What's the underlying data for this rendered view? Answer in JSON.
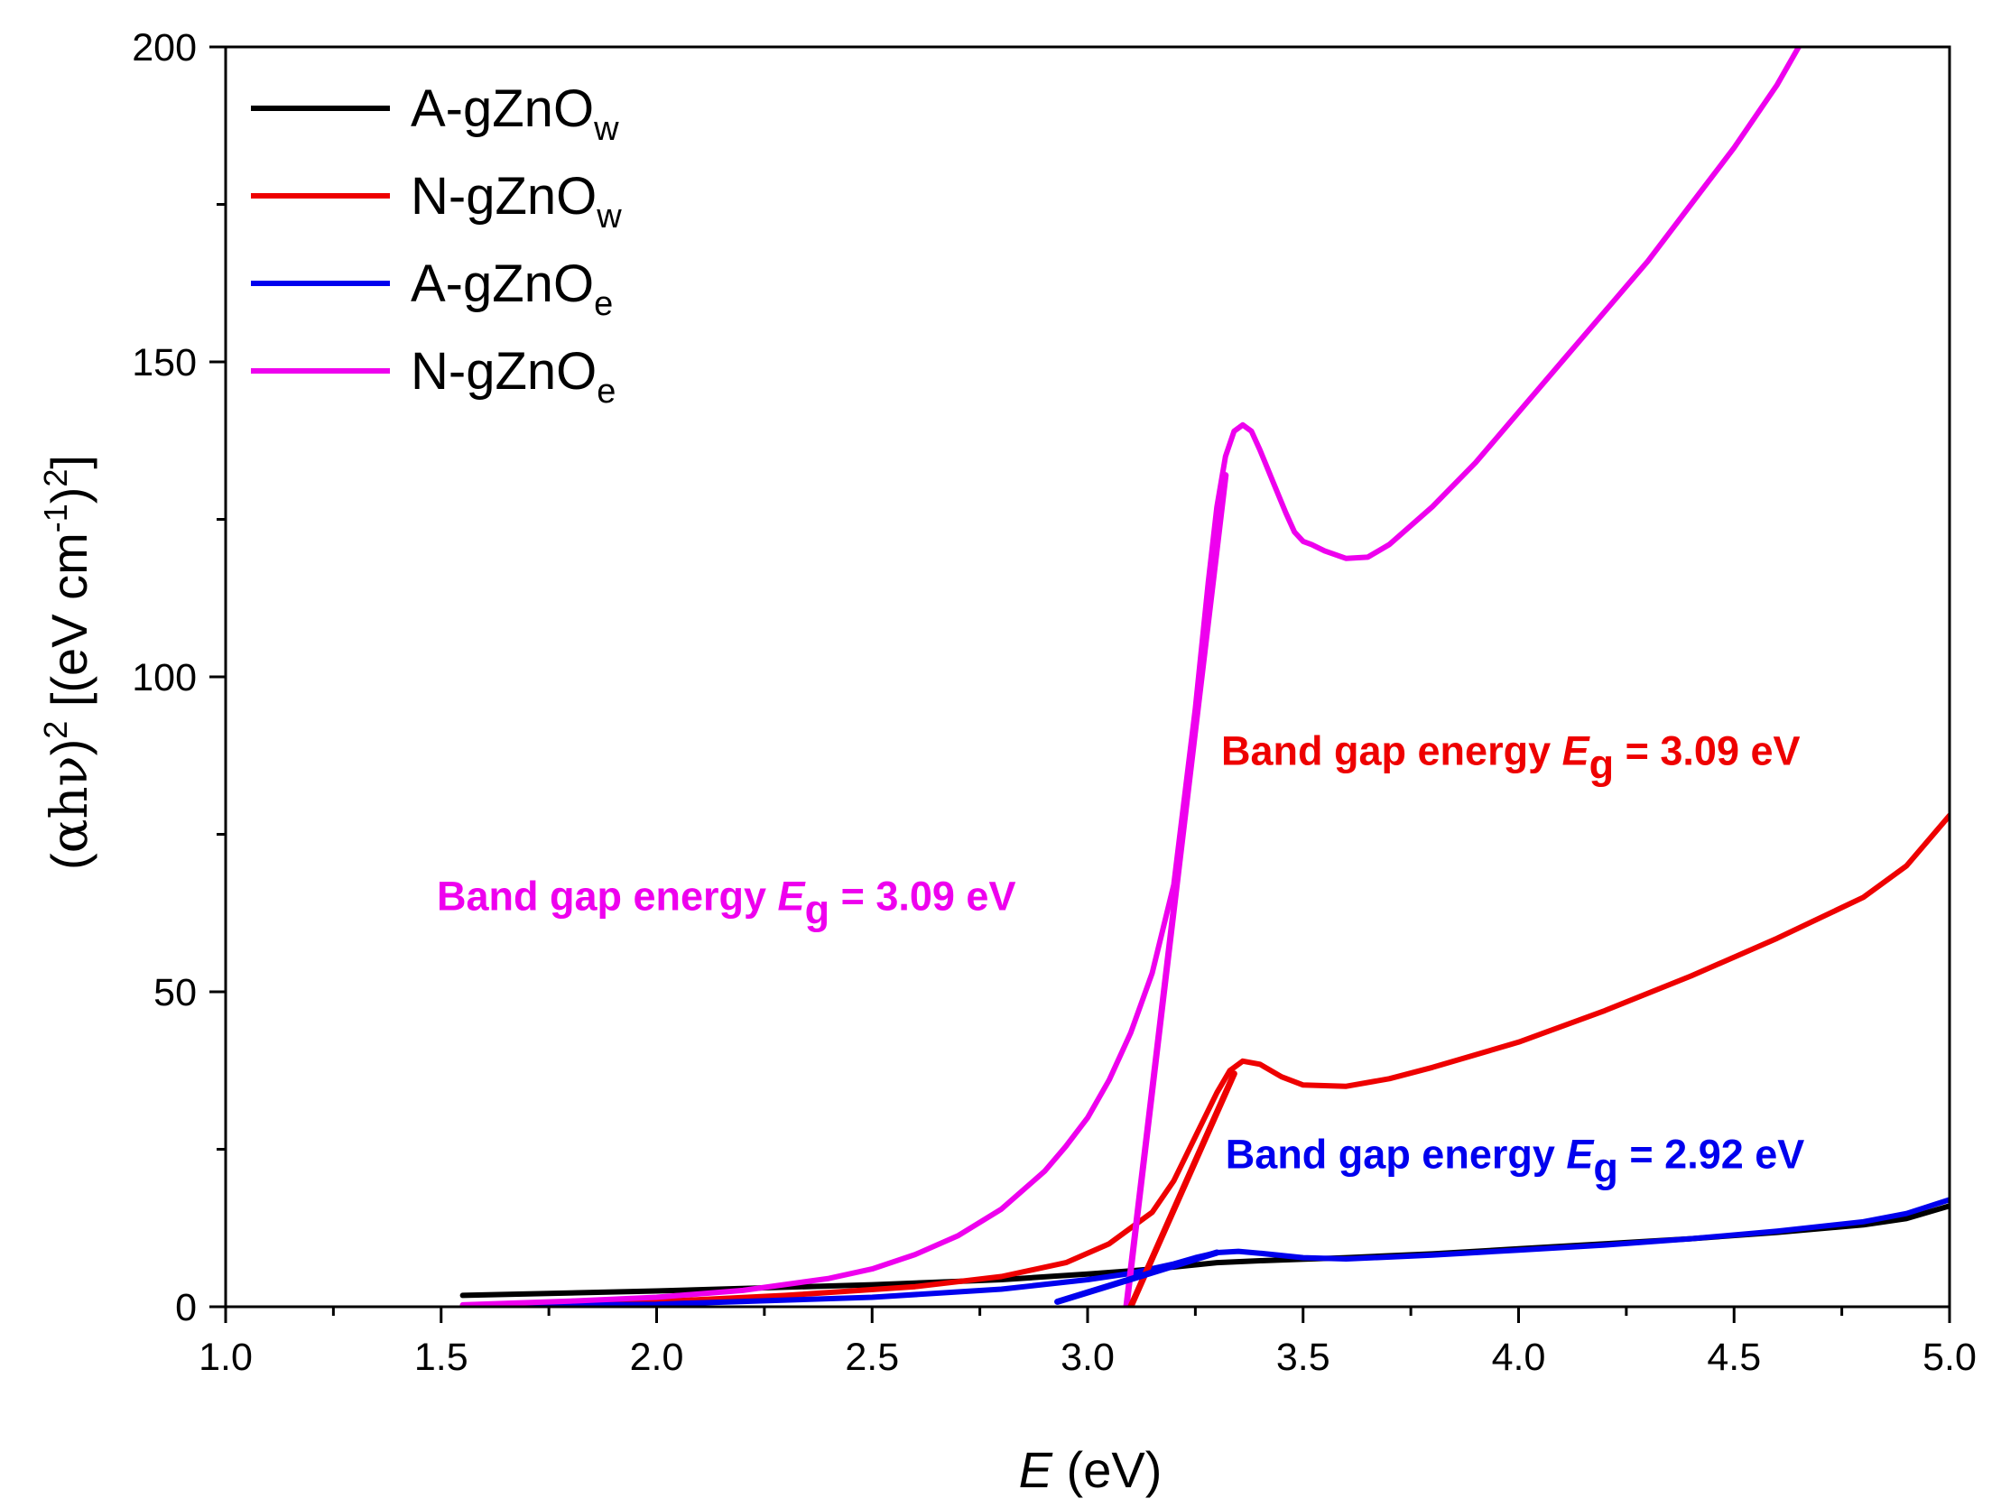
{
  "chart_data": {
    "type": "line",
    "title": "",
    "xlabel": {
      "italic": "E",
      "rest": " (eV)"
    },
    "ylabel": {
      "pre": "(",
      "greek": "αhν",
      "mid": ")",
      "sup1": "2",
      "rest": " [(eV cm",
      "sup2": "-1",
      "rest2": ")",
      "sup3": "2",
      "end": "]"
    },
    "xlim": [
      1.0,
      5.0
    ],
    "ylim": [
      0,
      200
    ],
    "x_ticks": [
      "1.0",
      "1.5",
      "2.0",
      "2.5",
      "3.0",
      "3.5",
      "4.0",
      "4.5",
      "5.0"
    ],
    "y_ticks": [
      "0",
      "50",
      "100",
      "150",
      "200"
    ],
    "x_tick_values": [
      1.0,
      1.5,
      2.0,
      2.5,
      3.0,
      3.5,
      4.0,
      4.5,
      5.0
    ],
    "y_tick_values": [
      0,
      50,
      100,
      150,
      200
    ],
    "legend_position": "top-left",
    "series": [
      {
        "name": "A-gZnOw",
        "base": "A-gZnO",
        "sub": "w",
        "color": "#000000",
        "x": [
          1.55,
          2.0,
          2.5,
          2.8,
          3.0,
          3.1,
          3.2,
          3.3,
          3.4,
          3.6,
          3.8,
          4.0,
          4.2,
          4.4,
          4.6,
          4.8,
          4.9,
          5.0
        ],
        "y": [
          1.8,
          2.5,
          3.5,
          4.3,
          5.2,
          5.7,
          6.3,
          7.0,
          7.3,
          7.8,
          8.4,
          9.2,
          10.0,
          10.8,
          11.8,
          13.0,
          14.0,
          16.0
        ]
      },
      {
        "name": "N-gZnOw",
        "base": "N-gZnO",
        "sub": "w",
        "color": "#ee0000",
        "x": [
          1.55,
          2.0,
          2.3,
          2.6,
          2.8,
          2.95,
          3.05,
          3.15,
          3.2,
          3.25,
          3.3,
          3.33,
          3.36,
          3.4,
          3.45,
          3.5,
          3.6,
          3.7,
          3.8,
          4.0,
          4.2,
          4.4,
          4.6,
          4.8,
          4.9,
          5.0
        ],
        "y": [
          0.2,
          0.8,
          1.8,
          3.2,
          4.8,
          7.0,
          10.0,
          15.0,
          20.0,
          27.0,
          34.0,
          37.5,
          39.0,
          38.5,
          36.5,
          35.2,
          35.0,
          36.2,
          38.0,
          42.0,
          47.0,
          52.5,
          58.5,
          65.0,
          70.0,
          78.0
        ]
      },
      {
        "name": "A-gZnOe",
        "base": "A-gZnO",
        "sub": "e",
        "color": "#0000ee",
        "x": [
          1.55,
          2.0,
          2.5,
          2.8,
          3.0,
          3.1,
          3.2,
          3.25,
          3.3,
          3.35,
          3.4,
          3.5,
          3.6,
          3.8,
          4.0,
          4.2,
          4.4,
          4.6,
          4.8,
          4.9,
          5.0
        ],
        "y": [
          0.1,
          0.4,
          1.5,
          2.8,
          4.3,
          5.3,
          6.8,
          7.8,
          8.6,
          8.8,
          8.5,
          7.8,
          7.6,
          8.2,
          9.0,
          9.8,
          10.8,
          12.0,
          13.5,
          14.8,
          17.0
        ]
      },
      {
        "name": "N-gZnOe",
        "base": "N-gZnO",
        "sub": "e",
        "color": "#ee00ee",
        "x": [
          1.55,
          1.8,
          2.0,
          2.2,
          2.4,
          2.5,
          2.6,
          2.7,
          2.8,
          2.9,
          2.95,
          3.0,
          3.05,
          3.1,
          3.15,
          3.2,
          3.25,
          3.28,
          3.3,
          3.32,
          3.34,
          3.36,
          3.38,
          3.4,
          3.43,
          3.46,
          3.48,
          3.5,
          3.52,
          3.55,
          3.6,
          3.65,
          3.7,
          3.8,
          3.9,
          4.0,
          4.1,
          4.2,
          4.3,
          4.4,
          4.5,
          4.6,
          4.65
        ],
        "y": [
          0.3,
          0.9,
          1.5,
          2.6,
          4.5,
          6.0,
          8.3,
          11.3,
          15.5,
          21.5,
          25.5,
          30.0,
          36.0,
          43.5,
          53.0,
          67.0,
          95.0,
          115.0,
          127.0,
          135.0,
          139.0,
          140.0,
          139.0,
          136.0,
          131.0,
          126.0,
          123.0,
          121.5,
          121.0,
          120.0,
          118.8,
          119.0,
          121.0,
          127.0,
          134.0,
          142.0,
          150.0,
          158.0,
          166.0,
          175.0,
          184.0,
          194.0,
          200.0
        ]
      }
    ],
    "fit_lines": [
      {
        "name": "fit-magenta",
        "color": "#ee00ee",
        "x": [
          3.09,
          3.32
        ],
        "y": [
          0,
          132
        ]
      },
      {
        "name": "fit-red",
        "color": "#ee0000",
        "x": [
          3.1,
          3.34
        ],
        "y": [
          0,
          37
        ]
      },
      {
        "name": "fit-blue",
        "color": "#0000ee",
        "x": [
          2.93,
          3.3
        ],
        "y": [
          0.8,
          8.6
        ]
      }
    ],
    "annotations": [
      {
        "name": "anno-red",
        "color": "#ee0000",
        "prefix": "Band gap energy ",
        "italic": "E",
        "sub": "g",
        "suffix": " = 3.09 eV",
        "x": 3.31,
        "y": 86
      },
      {
        "name": "anno-magenta",
        "color": "#ee00ee",
        "prefix": "Band gap energy ",
        "italic": "E",
        "sub": "g",
        "suffix": " = 3.09 eV",
        "x": 1.49,
        "y": 63
      },
      {
        "name": "anno-blue",
        "color": "#0000ee",
        "prefix": "Band gap energy ",
        "italic": "E",
        "sub": "g",
        "suffix": " = 2.92 eV",
        "x": 3.32,
        "y": 22
      }
    ]
  }
}
